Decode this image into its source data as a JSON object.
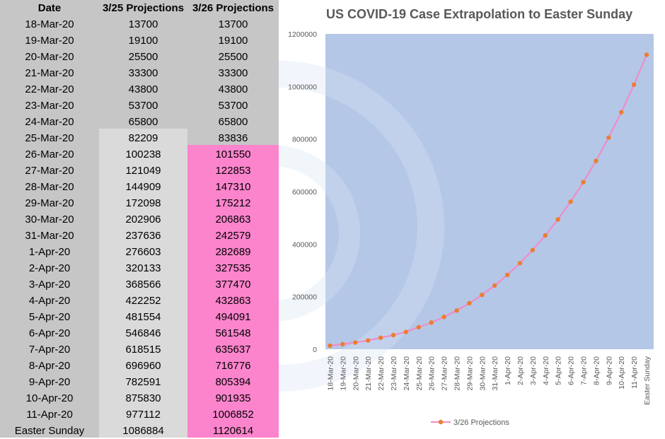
{
  "table": {
    "headers": [
      "Date",
      "3/25 Projections",
      "3/26 Projections"
    ],
    "rows": [
      [
        "18-Mar-20",
        "13700",
        "13700"
      ],
      [
        "19-Mar-20",
        "19100",
        "19100"
      ],
      [
        "20-Mar-20",
        "25500",
        "25500"
      ],
      [
        "21-Mar-20",
        "33300",
        "33300"
      ],
      [
        "22-Mar-20",
        "43800",
        "43800"
      ],
      [
        "23-Mar-20",
        "53700",
        "53700"
      ],
      [
        "24-Mar-20",
        "65800",
        "65800"
      ],
      [
        "25-Mar-20",
        "82209",
        "83836"
      ],
      [
        "26-Mar-20",
        "100238",
        "101550"
      ],
      [
        "27-Mar-20",
        "121049",
        "122853"
      ],
      [
        "28-Mar-20",
        "144909",
        "147310"
      ],
      [
        "29-Mar-20",
        "172098",
        "175212"
      ],
      [
        "30-Mar-20",
        "202906",
        "206863"
      ],
      [
        "31-Mar-20",
        "237636",
        "242579"
      ],
      [
        "1-Apr-20",
        "276603",
        "282689"
      ],
      [
        "2-Apr-20",
        "320133",
        "327535"
      ],
      [
        "3-Apr-20",
        "368566",
        "377470"
      ],
      [
        "4-Apr-20",
        "422252",
        "432863"
      ],
      [
        "5-Apr-20",
        "481554",
        "494091"
      ],
      [
        "6-Apr-20",
        "546846",
        "561548"
      ],
      [
        "7-Apr-20",
        "618515",
        "635637"
      ],
      [
        "8-Apr-20",
        "696960",
        "716776"
      ],
      [
        "9-Apr-20",
        "782591",
        "805394"
      ],
      [
        "10-Apr-20",
        "875830",
        "901935"
      ],
      [
        "11-Apr-20",
        "977112",
        "1006852"
      ],
      [
        "Easter Sunday",
        "1086884",
        "1120614"
      ]
    ]
  },
  "colors": {
    "panel_gray": "#c6c6c6",
    "light_gray": "#dadada",
    "pink_highlight": "#fc84cd",
    "plot_bg": "#b4c7e7",
    "line": "#f08cc8",
    "marker": "#ed7d31"
  },
  "chart_data": {
    "type": "line",
    "title": "US COVID-19 Case Extrapolation to Easter Sunday",
    "xlabel": "",
    "ylabel": "",
    "ylim": [
      0,
      1200000
    ],
    "yticks": [
      "0",
      "200000",
      "400000",
      "600000",
      "800000",
      "1000000",
      "1200000"
    ],
    "grid": false,
    "legend": "bottom",
    "categories": [
      "18-Mar-20",
      "19-Mar-20",
      "20-Mar-20",
      "21-Mar-20",
      "22-Mar-20",
      "23-Mar-20",
      "24-Mar-20",
      "25-Mar-20",
      "26-Mar-20",
      "27-Mar-20",
      "28-Mar-20",
      "29-Mar-20",
      "30-Mar-20",
      "31-Mar-20",
      "1-Apr-20",
      "2-Apr-20",
      "3-Apr-20",
      "4-Apr-20",
      "5-Apr-20",
      "6-Apr-20",
      "7-Apr-20",
      "8-Apr-20",
      "9-Apr-20",
      "10-Apr-20",
      "11-Apr-20",
      "Easter Sunday"
    ],
    "series": [
      {
        "name": "3/26 Projections",
        "values": [
          13700,
          19100,
          25500,
          33300,
          43800,
          53700,
          65800,
          83836,
          101550,
          122853,
          147310,
          175212,
          206863,
          242579,
          282689,
          327535,
          377470,
          432863,
          494091,
          561548,
          635637,
          716776,
          805394,
          901935,
          1006852,
          1120614
        ]
      }
    ]
  }
}
